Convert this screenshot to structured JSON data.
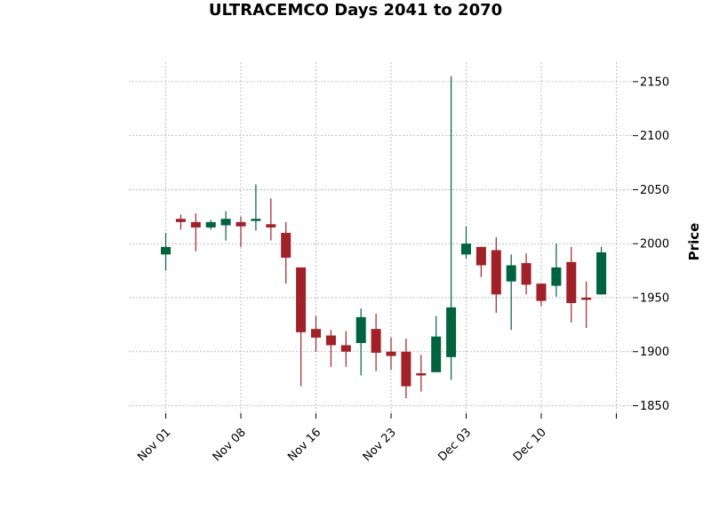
{
  "chart_data": {
    "type": "candlestick",
    "title": "ULTRACEMCO Days 2041 to 2070",
    "ylabel": "Price",
    "xlabel": "",
    "ylim": [
      1843,
      2168
    ],
    "yticks": [
      1850,
      1900,
      1950,
      2000,
      2050,
      2100,
      2150
    ],
    "xtick_labels": [
      {
        "index": 0,
        "label": "Nov 01"
      },
      {
        "index": 5,
        "label": "Nov 08"
      },
      {
        "index": 10,
        "label": "Nov 16"
      },
      {
        "index": 15,
        "label": "Nov 23"
      },
      {
        "index": 20,
        "label": "Dec 03"
      },
      {
        "index": 25,
        "label": "Dec 10"
      },
      {
        "index": 30,
        "label": ""
      }
    ],
    "grid": true,
    "colors": {
      "up": "#006340",
      "down": "#a02128",
      "grid": "#b0b0b0"
    },
    "candles": [
      {
        "open": 1990,
        "high": 2010,
        "low": 1975,
        "close": 1997
      },
      {
        "open": 2023,
        "high": 2027,
        "low": 2013,
        "close": 2020
      },
      {
        "open": 2020,
        "high": 2028,
        "low": 1993,
        "close": 2015
      },
      {
        "open": 2015,
        "high": 2022,
        "low": 2013,
        "close": 2020
      },
      {
        "open": 2017,
        "high": 2030,
        "low": 2003,
        "close": 2023
      },
      {
        "open": 2020,
        "high": 2025,
        "low": 1997,
        "close": 2016
      },
      {
        "open": 2021,
        "high": 2055,
        "low": 2012,
        "close": 2023
      },
      {
        "open": 2018,
        "high": 2042,
        "low": 2003,
        "close": 2015
      },
      {
        "open": 2010,
        "high": 2020,
        "low": 1963,
        "close": 1987
      },
      {
        "open": 1978,
        "high": 1978,
        "low": 1868,
        "close": 1918
      },
      {
        "open": 1921,
        "high": 1933,
        "low": 1900,
        "close": 1913
      },
      {
        "open": 1915,
        "high": 1920,
        "low": 1886,
        "close": 1906
      },
      {
        "open": 1906,
        "high": 1919,
        "low": 1886,
        "close": 1900
      },
      {
        "open": 1908,
        "high": 1940,
        "low": 1878,
        "close": 1932
      },
      {
        "open": 1921,
        "high": 1935,
        "low": 1882,
        "close": 1899
      },
      {
        "open": 1900,
        "high": 1913,
        "low": 1883,
        "close": 1896
      },
      {
        "open": 1900,
        "high": 1912,
        "low": 1857,
        "close": 1868
      },
      {
        "open": 1880,
        "high": 1897,
        "low": 1863,
        "close": 1878
      },
      {
        "open": 1881,
        "high": 1933,
        "low": 1881,
        "close": 1914
      },
      {
        "open": 1895,
        "high": 2155,
        "low": 1874,
        "close": 1941
      },
      {
        "open": 1990,
        "high": 2016,
        "low": 1986,
        "close": 2000
      },
      {
        "open": 1997,
        "high": 1997,
        "low": 1969,
        "close": 1980
      },
      {
        "open": 1994,
        "high": 2006,
        "low": 1936,
        "close": 1953
      },
      {
        "open": 1965,
        "high": 1990,
        "low": 1920,
        "close": 1980
      },
      {
        "open": 1982,
        "high": 1991,
        "low": 1953,
        "close": 1962
      },
      {
        "open": 1963,
        "high": 1963,
        "low": 1942,
        "close": 1947
      },
      {
        "open": 1961,
        "high": 2000,
        "low": 1951,
        "close": 1978
      },
      {
        "open": 1983,
        "high": 1997,
        "low": 1927,
        "close": 1945
      },
      {
        "open": 1950,
        "high": 1965,
        "low": 1922,
        "close": 1948
      },
      {
        "open": 1953,
        "high": 1997,
        "low": 1953,
        "close": 1992
      }
    ]
  }
}
